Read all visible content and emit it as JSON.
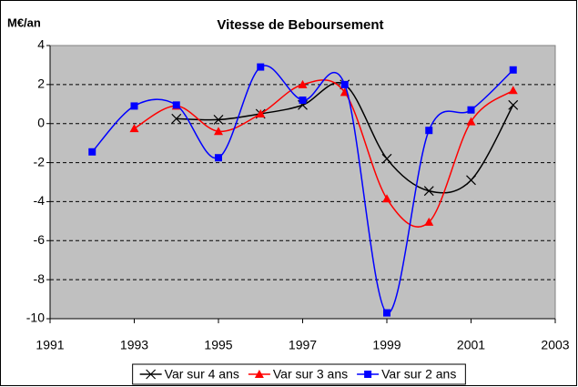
{
  "chart_data": {
    "type": "line",
    "title": "Vitesse de Beboursement",
    "y_label": "M€/an",
    "x": [
      1992,
      1993,
      1994,
      1995,
      1996,
      1997,
      1998,
      1999,
      2000,
      2001,
      2002
    ],
    "series": [
      {
        "name": "Var sur 4 ans",
        "color": "#000000",
        "marker": "x",
        "values": [
          null,
          null,
          0.25,
          0.2,
          0.5,
          0.95,
          2.0,
          -1.8,
          -3.45,
          -2.9,
          0.95
        ]
      },
      {
        "name": "Var sur 3 ans",
        "color": "#ff0000",
        "marker": "triangle",
        "values": [
          null,
          -0.25,
          0.9,
          -0.4,
          0.5,
          2.0,
          1.6,
          -3.85,
          -5.05,
          0.1,
          1.7
        ]
      },
      {
        "name": "Var sur 2 ans",
        "color": "#0000ff",
        "marker": "square",
        "values": [
          -1.45,
          0.9,
          0.95,
          -1.75,
          2.9,
          1.2,
          2.0,
          -9.7,
          -0.35,
          0.7,
          2.75
        ]
      }
    ],
    "xlim": [
      1991,
      2003
    ],
    "xticks": [
      1991,
      1993,
      1995,
      1997,
      1999,
      2001,
      2003
    ],
    "ylim": [
      -10,
      4
    ],
    "yticks": [
      -10,
      -8,
      -6,
      -4,
      -2,
      0,
      2,
      4
    ],
    "grid": true,
    "smooth": true,
    "legend": "bottom"
  }
}
